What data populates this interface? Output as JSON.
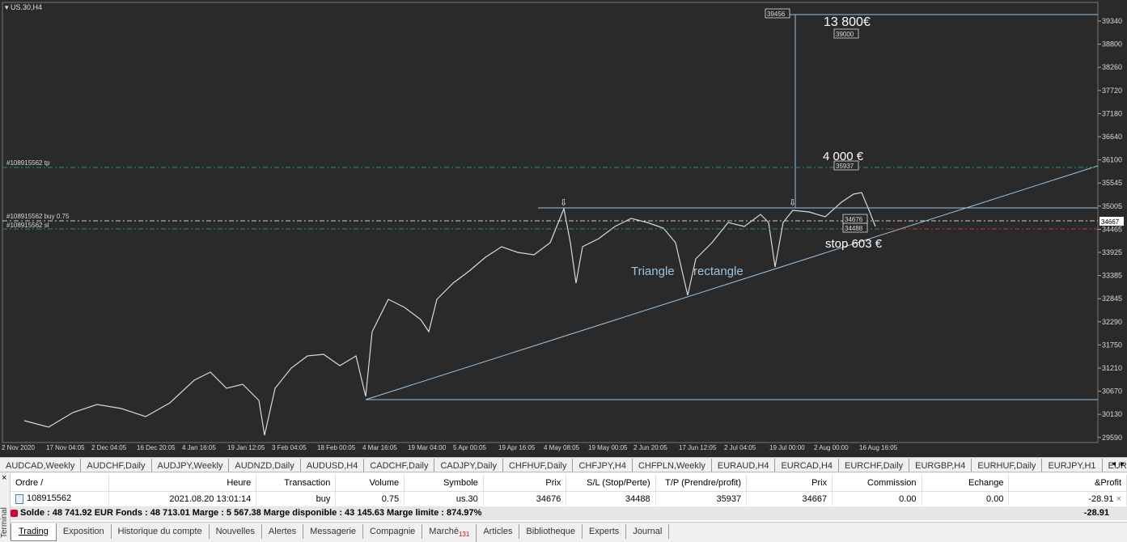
{
  "chart": {
    "symbol_label": "US.30,H4",
    "price_axis": [
      "39340",
      "38800",
      "38260",
      "37720",
      "37180",
      "36640",
      "36100",
      "35545",
      "35005",
      "34465",
      "33925",
      "33385",
      "32845",
      "32290",
      "31750",
      "31210",
      "30670",
      "30130",
      "29590"
    ],
    "time_axis": [
      "2 Nov 2020",
      "17 Nov 04:05",
      "2 Dec 04:05",
      "16 Dec 20:05",
      "4 Jan 16:05",
      "19 Jan 12:05",
      "3 Feb 04:05",
      "18 Feb 00:05",
      "4 Mar 16:05",
      "19 Mar 04:00",
      "5 Apr 00:05",
      "19 Apr 16:05",
      "4 May 08:05",
      "19 May 00:05",
      "2 Jun 20:05",
      "17 Jun 12:05",
      "2 Jul 04:05",
      "19 Jul 00:00",
      "2 Aug 00:00",
      "16 Aug 16:05"
    ],
    "order_lines": {
      "tp": "#108915562 tp",
      "buy": "#108915562 buy 0.75",
      "sl": "#108915562 sl"
    },
    "price_boxes": {
      "top": "39456",
      "target": "39000",
      "tp": "35937",
      "entry": "34676",
      "sl": "34488",
      "current": "34667"
    },
    "annotations": {
      "big_gain": "13 800€",
      "gain": "4 000 €",
      "stop": "stop 603 €",
      "pattern_word1": "Triangle",
      "pattern_word2": "rectangle"
    },
    "colors": {
      "background": "#2a2a2a",
      "price": "#d9d9d9",
      "trendline": "#9ec3e0",
      "tp_line": "#2e8b7a",
      "sl_line": "#c0392b"
    }
  },
  "symbol_tabs": [
    "AUDCAD,Weekly",
    "AUDCHF,Daily",
    "AUDJPY,Weekly",
    "AUDNZD,Daily",
    "AUDUSD,H4",
    "CADCHF,Daily",
    "CADJPY,Daily",
    "CHFHUF,Daily",
    "CHFJPY,H4",
    "CHFPLN,Weekly",
    "EURAUD,H4",
    "EURCAD,H4",
    "EURCHF,Daily",
    "EURGBP,H4",
    "EURHUF,Daily",
    "EURJPY,H1",
    "EURNO"
  ],
  "terminal": {
    "side_label": "Terminal",
    "columns": [
      "Ordre /",
      "Heure",
      "Transaction",
      "Volume",
      "Symbole",
      "Prix",
      "S/L (Stop/Perte)",
      "T/P (Prendre/profit)",
      "Prix",
      "Commission",
      "Echange",
      "&Profit"
    ],
    "row": {
      "ordre": "108915562",
      "heure": "2021.08.20 13:01:14",
      "transaction": "buy",
      "volume": "0.75",
      "symbole": "us.30",
      "prix": "34676",
      "sl": "34488",
      "tp": "35937",
      "prix_actuel": "34667",
      "commission": "0.00",
      "echange": "0.00",
      "profit": "-28.91"
    },
    "balance_text": "Solde : 48 741.92 EUR  Fonds : 48 713.01  Marge : 5 567.38  Marge disponible : 43 145.63  Marge limite : 874.97%",
    "balance_total": "-28.91",
    "tabs": [
      "Trading",
      "Exposition",
      "Historique du compte",
      "Nouvelles",
      "Alertes",
      "Messagerie",
      "Compagnie",
      "Marché",
      "Articles",
      "Bibliotheque",
      "Experts",
      "Journal"
    ],
    "market_badge": "131"
  }
}
